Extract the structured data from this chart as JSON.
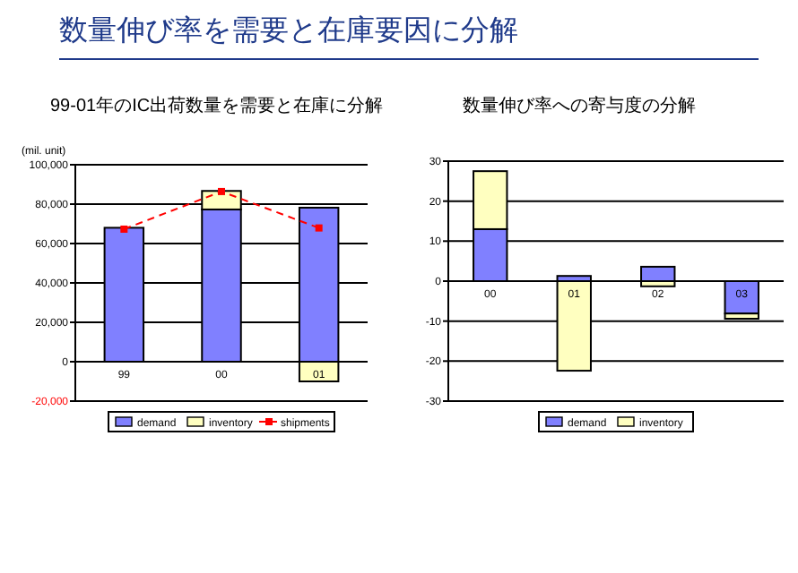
{
  "chart_data": [
    {
      "type": "bar",
      "title": "99-01年のIC出荷数量を需要と在庫に分解",
      "annotations": [
        "数量伸び率を需要と在庫要因に分解"
      ],
      "ylabel": "(mil. unit)",
      "categories": [
        "99",
        "00",
        "01"
      ],
      "stacked": true,
      "series": [
        {
          "name": "demand",
          "color": "#8080ff",
          "values": [
            68000,
            77300,
            78200
          ]
        },
        {
          "name": "inventory",
          "color": "#ffffc0",
          "values": [
            0,
            9400,
            -10000
          ]
        },
        {
          "name": "shipments",
          "type": "line",
          "color": "#ff0000",
          "marker": "square",
          "line_style": "dashed",
          "values": [
            67300,
            86400,
            67900
          ]
        }
      ],
      "ylim": [
        -20000,
        100000
      ],
      "yticks": [
        {
          "value": -20000,
          "label": "-20,000"
        },
        0,
        {
          "value": 20000,
          "label": "20,000"
        },
        {
          "value": 40000,
          "label": "40,000"
        },
        {
          "value": 60000,
          "label": "60,000"
        },
        {
          "value": 80000,
          "label": "80,000"
        },
        {
          "value": 100000,
          "label": "100,000"
        }
      ],
      "grid": "y",
      "legend": "bottom"
    },
    {
      "type": "bar",
      "title": "数量伸び率への寄与度の分解",
      "categories": [
        "00",
        "01",
        "02",
        "03"
      ],
      "stacked": true,
      "series": [
        {
          "name": "demand",
          "color": "#8080ff",
          "values": [
            13.0,
            1.3,
            3.6,
            -8.1
          ]
        },
        {
          "name": "inventory",
          "color": "#ffffc0",
          "values": [
            14.5,
            -22.4,
            -1.3,
            -1.3
          ]
        }
      ],
      "ylim": [
        -30,
        30
      ],
      "yticks": [
        -30,
        -20,
        -10,
        0,
        10,
        20,
        30
      ],
      "grid": "y",
      "legend": "bottom"
    }
  ]
}
